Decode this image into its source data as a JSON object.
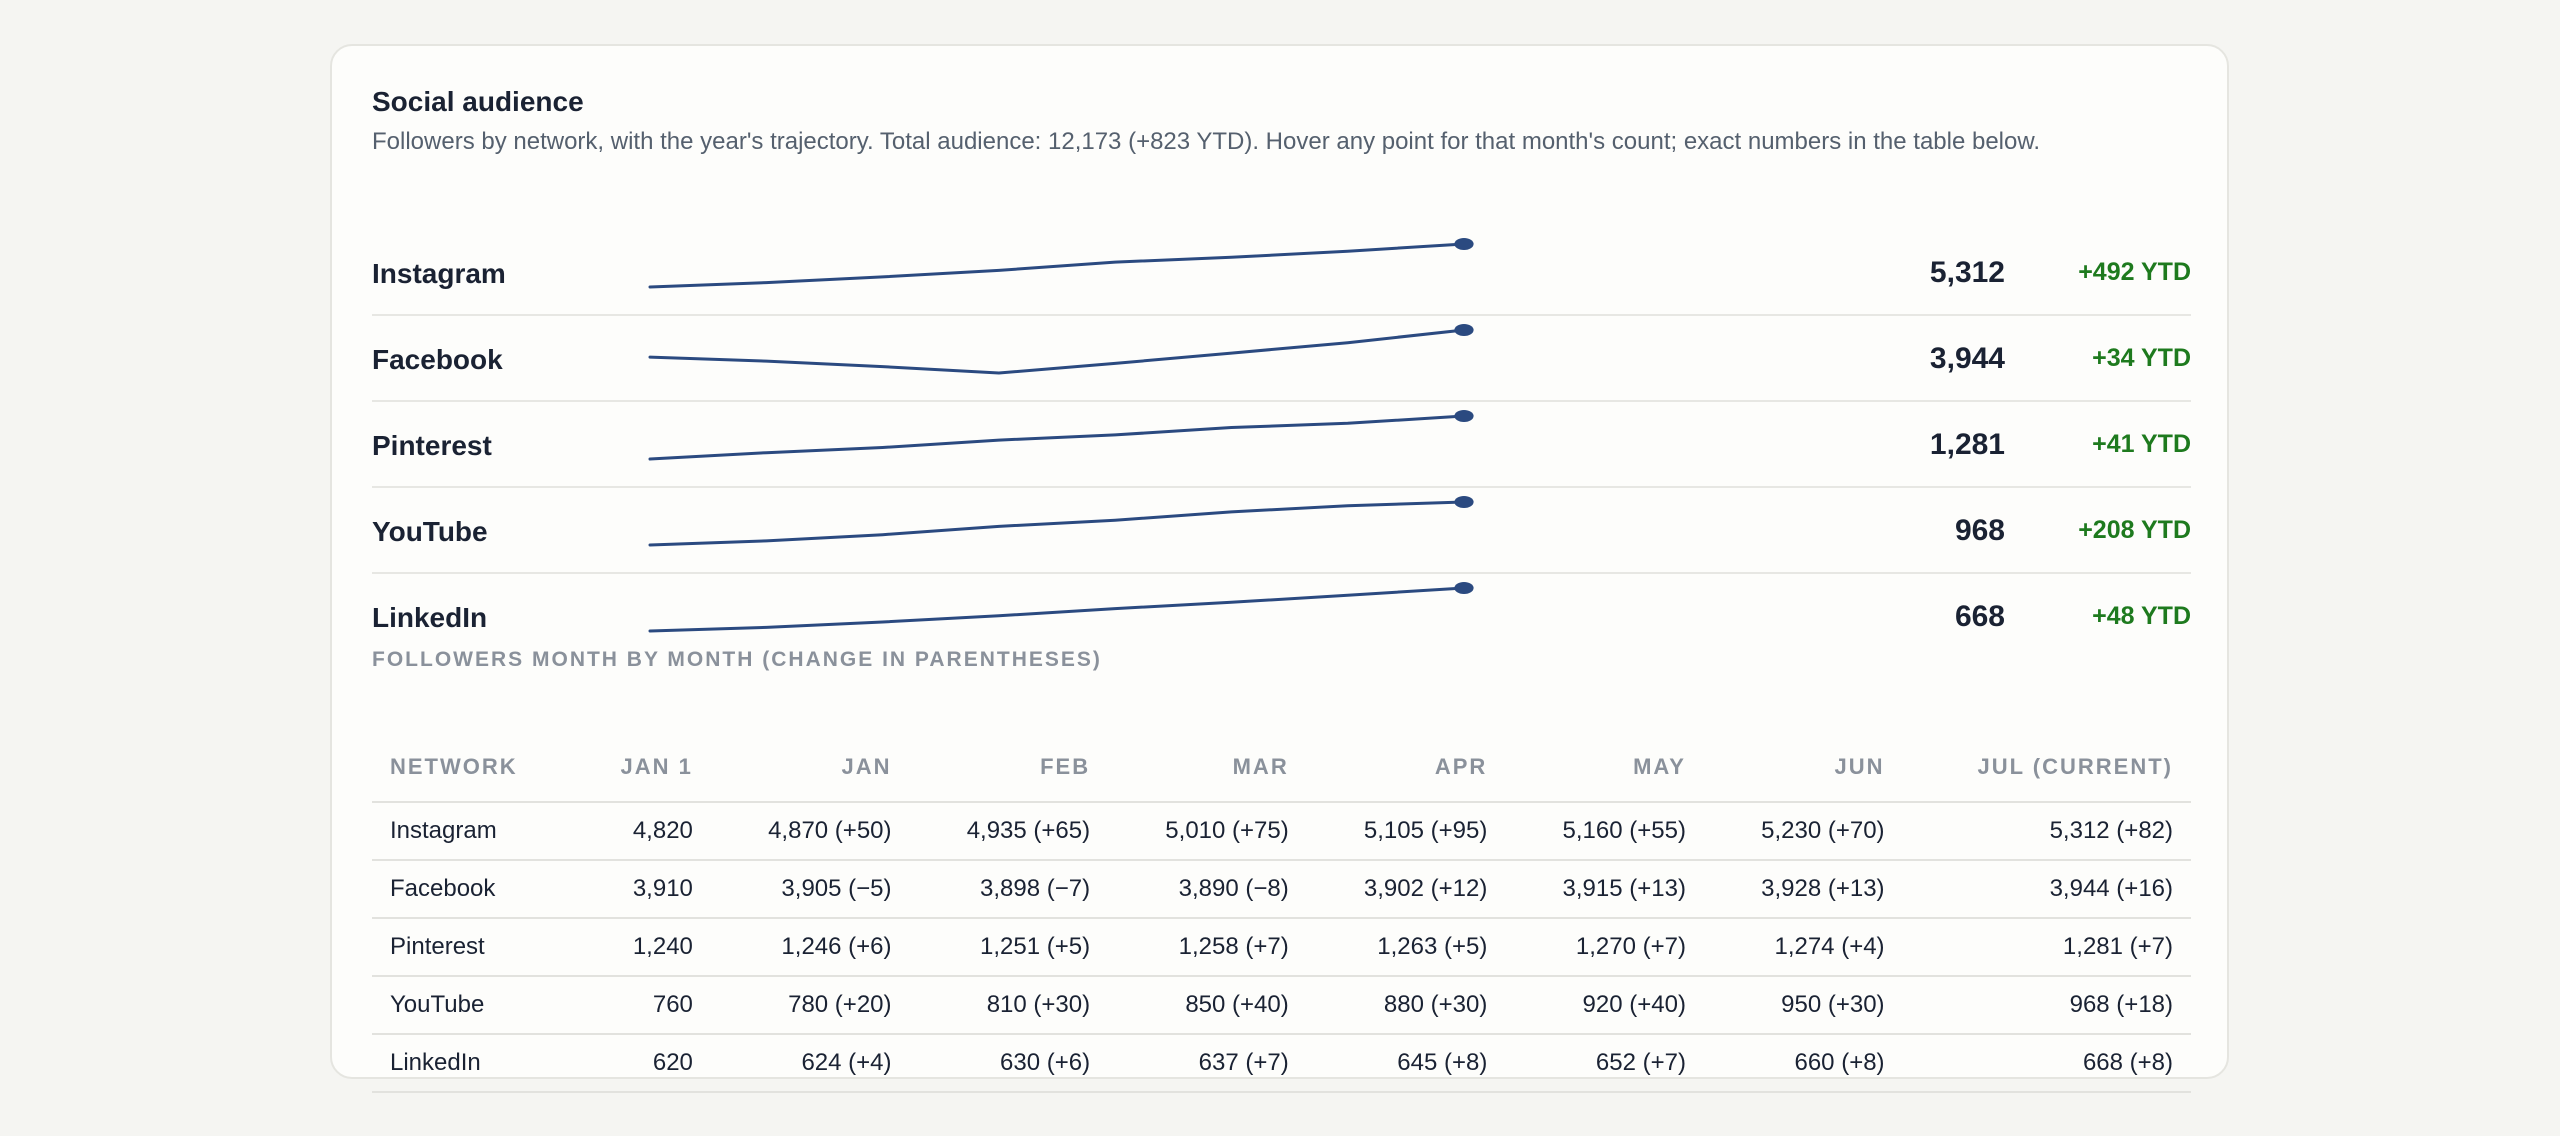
{
  "header": {
    "title": "Social audience",
    "subtitle": "Followers by network, with the year's trajectory. Total audience: 12,173 (+823 YTD). Hover any point for that month's count; exact numbers in the table below."
  },
  "colors": {
    "line": "#2b4a80",
    "ytd_positive": "#1e7a1e",
    "text": "#1a2233",
    "muted": "#8a919b"
  },
  "networks": [
    {
      "name": "Instagram",
      "count": "5,312",
      "ytd": "+492 YTD"
    },
    {
      "name": "Facebook",
      "count": "3,944",
      "ytd": "+34 YTD"
    },
    {
      "name": "Pinterest",
      "count": "1,281",
      "ytd": "+41 YTD"
    },
    {
      "name": "YouTube",
      "count": "968",
      "ytd": "+208 YTD"
    },
    {
      "name": "LinkedIn",
      "count": "668",
      "ytd": "+48 YTD"
    }
  ],
  "table": {
    "caption": "FOLLOWERS MONTH BY MONTH (CHANGE IN PARENTHESES)",
    "headers": [
      "NETWORK",
      "JAN 1",
      "JAN",
      "FEB",
      "MAR",
      "APR",
      "MAY",
      "JUN",
      "JUL (CURRENT)"
    ],
    "rows": [
      [
        "Instagram",
        "4,820",
        "4,870 (+50)",
        "4,935 (+65)",
        "5,010 (+75)",
        "5,105 (+95)",
        "5,160 (+55)",
        "5,230 (+70)",
        "5,312 (+82)"
      ],
      [
        "Facebook",
        "3,910",
        "3,905 (−5)",
        "3,898 (−7)",
        "3,890 (−8)",
        "3,902 (+12)",
        "3,915 (+13)",
        "3,928 (+13)",
        "3,944 (+16)"
      ],
      [
        "Pinterest",
        "1,240",
        "1,246 (+6)",
        "1,251 (+5)",
        "1,258 (+7)",
        "1,263 (+5)",
        "1,270 (+7)",
        "1,274 (+4)",
        "1,281 (+7)"
      ],
      [
        "YouTube",
        "760",
        "780 (+20)",
        "810 (+30)",
        "850 (+40)",
        "880 (+30)",
        "920 (+40)",
        "950 (+30)",
        "968 (+18)"
      ],
      [
        "LinkedIn",
        "620",
        "624 (+4)",
        "630 (+6)",
        "637 (+7)",
        "645 (+8)",
        "652 (+7)",
        "660 (+8)",
        "668 (+8)"
      ]
    ]
  },
  "chart_data": {
    "type": "line",
    "x": [
      "Jan 1",
      "Jan",
      "Feb",
      "Mar",
      "Apr",
      "May",
      "Jun",
      "Jul"
    ],
    "series": [
      {
        "name": "Instagram",
        "values": [
          4820,
          4870,
          4935,
          5010,
          5105,
          5160,
          5230,
          5312
        ]
      },
      {
        "name": "Facebook",
        "values": [
          3910,
          3905,
          3898,
          3890,
          3902,
          3915,
          3928,
          3944
        ]
      },
      {
        "name": "Pinterest",
        "values": [
          1240,
          1246,
          1251,
          1258,
          1263,
          1270,
          1274,
          1281
        ]
      },
      {
        "name": "YouTube",
        "values": [
          760,
          780,
          810,
          850,
          880,
          920,
          950,
          968
        ]
      },
      {
        "name": "LinkedIn",
        "values": [
          620,
          624,
          630,
          637,
          645,
          652,
          660,
          668
        ]
      }
    ],
    "grid": false,
    "legend": "none"
  }
}
